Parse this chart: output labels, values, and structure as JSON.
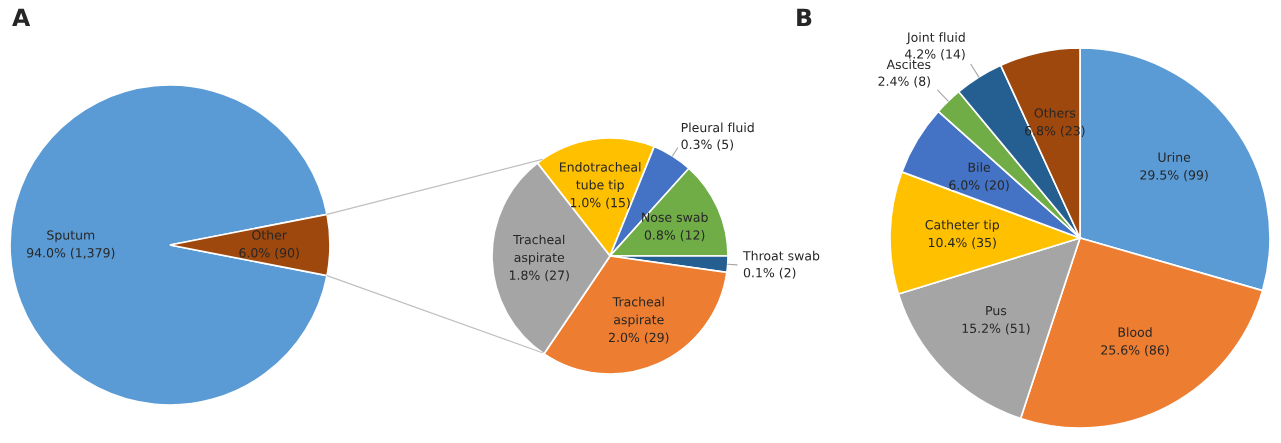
{
  "chart_data": [
    {
      "type": "pie",
      "title": "A",
      "categories": [
        "Sputum",
        "Other"
      ],
      "values": [
        1379,
        90
      ],
      "colors": [
        "#5b9bd5",
        "#9e480e"
      ],
      "value_labels": [
        "94.0% (1,379)",
        "6.0% (90)"
      ]
    },
    {
      "type": "pie",
      "categories": [
        "Endotracheal tube tip",
        "Pleural fluid",
        "Nose swab",
        "Throat swab",
        "Tracheal aspirate",
        "Tracheal aspirate"
      ],
      "values": [
        15,
        5,
        12,
        2,
        29,
        27
      ],
      "colors": [
        "#ffc000",
        "#4472c4",
        "#70ad47",
        "#255e91",
        "#ed7d31",
        "#a5a5a5"
      ],
      "value_labels": [
        "1.0% (15)",
        "0.3% (5)",
        "0.8% (12)",
        "0.1% (2)",
        "2.0% (29)",
        "1.8% (27)"
      ]
    },
    {
      "type": "pie",
      "title": "B",
      "categories": [
        "Urine",
        "Blood",
        "Pus",
        "Catheter tip",
        "Bile",
        "Ascites",
        "Joint fluid",
        "Others"
      ],
      "values": [
        99,
        86,
        51,
        35,
        20,
        8,
        14,
        23
      ],
      "colors": [
        "#5b9bd5",
        "#ed7d31",
        "#a5a5a5",
        "#ffc000",
        "#4472c4",
        "#70ad47",
        "#255e91",
        "#9e480e"
      ],
      "value_labels": [
        "29.5% (99)",
        "25.6% (86)",
        "15.2% (51)",
        "10.4% (35)",
        "6.0% (20)",
        "2.4% (8)",
        "4.2% (14)",
        "6.8% (23)"
      ]
    }
  ]
}
